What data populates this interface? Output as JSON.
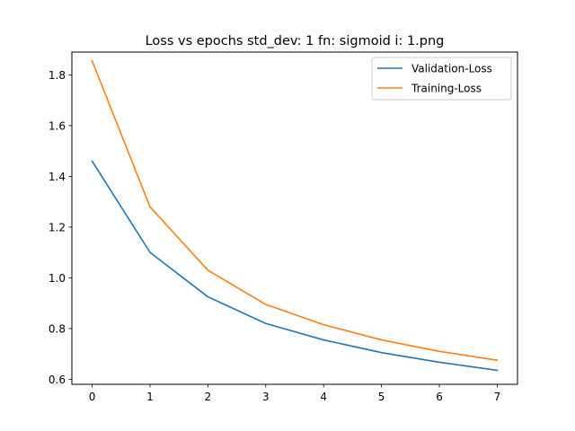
{
  "chart_data": {
    "type": "line",
    "title": "Loss vs epochs std_dev: 1 fn: sigmoid i: 1.png",
    "xlabel": "",
    "ylabel": "",
    "x": [
      0,
      1,
      2,
      3,
      4,
      5,
      6,
      7
    ],
    "xlim": [
      -0.35,
      7.35
    ],
    "ylim": [
      0.58,
      1.89
    ],
    "xticks": [
      "0",
      "1",
      "2",
      "3",
      "4",
      "5",
      "6",
      "7"
    ],
    "yticks": [
      "0.6",
      "0.8",
      "1.0",
      "1.2",
      "1.4",
      "1.6",
      "1.8"
    ],
    "grid": false,
    "legend_position": "top-right",
    "series": [
      {
        "name": "Validation-Loss",
        "color": "#1f77b4",
        "values": [
          1.46,
          1.1,
          0.925,
          0.82,
          0.755,
          0.705,
          0.667,
          0.635
        ]
      },
      {
        "name": "Training-Loss",
        "color": "#ff7f0e",
        "values": [
          1.855,
          1.28,
          1.03,
          0.895,
          0.815,
          0.755,
          0.71,
          0.675
        ]
      }
    ]
  }
}
